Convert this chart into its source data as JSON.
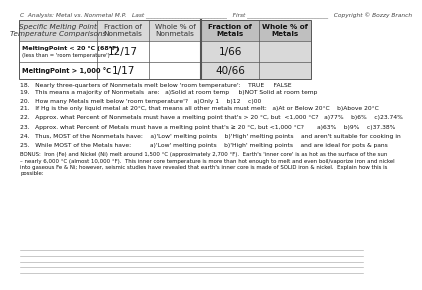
{
  "title_line": "C  Analysis: Metal vs. Nonmetal M.P.   Last ___________________________   First ___________________________   Copyright © Bozzy Branch",
  "header_col1": "Specific Melting Point\nTemperature Comparisons",
  "header_col2": "Fraction of\nNonmetals",
  "header_col3": "Whole % of\nNonmetals",
  "header_col4": "Fraction of\nMetals",
  "header_col5": "Whole % of\nMetals",
  "row1_label_bold": "MeltingPoint < 20 °C (68°F)",
  "row1_label_normal": "(less than = 'room temperature')",
  "row1_col2": "12/17",
  "row1_col4": "1/66",
  "row2_label_bold": "MeltingPoint > 1,000 °C",
  "row2_col2": "1/17",
  "row2_col4": "40/66",
  "questions": [
    "18.   Nearly three-quarters of Nonmetals melt below 'room temperature':    TRUE     FALSE",
    "19.   This means a majority of Nonmetals  are:   a)Solid at room temp     b)NOT Solid at room temp",
    "20.   How many Metals melt below 'room temperature'?   a)Only 1    b)12    c)00",
    "21.   If Hg is the only liquid metal at 20°C, that means all other metals must melt:   a)At or Below 20°C    b)Above 20°C",
    "22.   Approx. what Percent of Nonmetals must have a melting point that's > 20 °C, but  <1,000 °C?   a)77%    b)6%    c)23.74%",
    "23.   Approx. what Percent of Metals must have a melting point that's ≥ 20 °C, but <1,000 °C?       a)63%    b)9%    c)37.38%",
    "24.   Thus, MOST of the Nonmetals have:    a)'Low' melting points    b)'High' melting points    and aren't suitable for cooking in",
    "25.   While MOST of the Metals have:          a)'Low' melting points    b)'High' melting points    and are ideal for pots & pans",
    "BONUS:  Iron (Fe) and Nickel (Ni) melt around 1,500 °C (approximately 2,700 °F).  Earth's 'inner core' is as hot as the surface of the sun\n– nearly 6,000 °C (almost 10,000 °F).  This inner core temperature is more than hot enough to melt and even boil/vaporize iron and nickel\ninto gaseous Fe & Ni; however, seismic studies have revealed that earth's inner core is made of SOLID iron & nickel.  Explain how this is\npossible:"
  ],
  "q_blank_after": [
    1,
    3,
    4,
    5,
    6,
    7
  ],
  "answer_lines": 5,
  "bg_color": "#ffffff",
  "header_bg_light": "#d9d9d9",
  "header_bg_dark": "#bfbfbf",
  "border_color": "#555555",
  "title_fontsize": 4.2,
  "header_fontsize": 5.2,
  "cell_data_fontsize": 7.5,
  "row_label_fontsize": 4.8,
  "question_fontsize": 4.3,
  "bonus_fontsize": 3.9
}
